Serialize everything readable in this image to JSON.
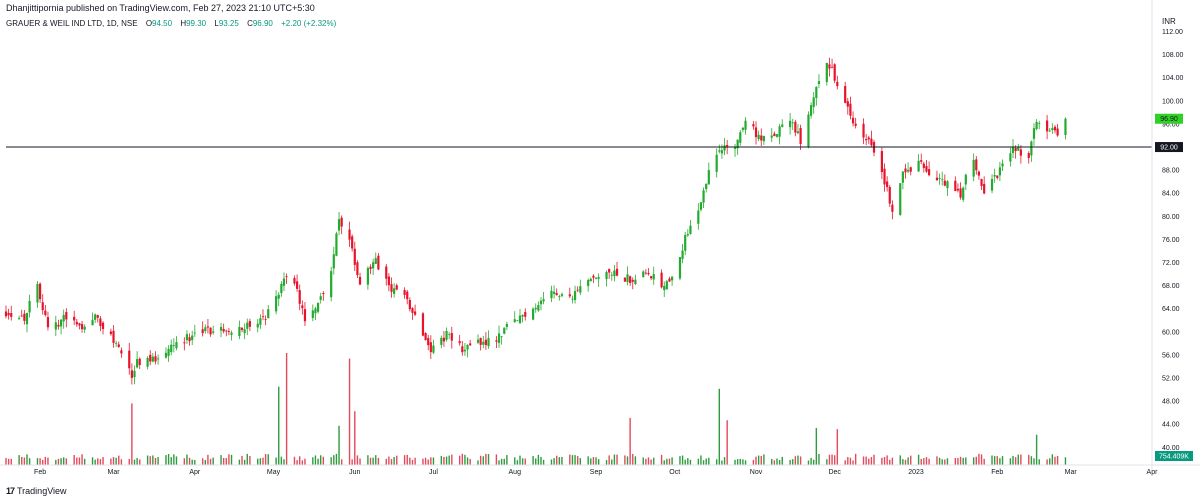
{
  "publisher_line": "Dhanjittipornia published on TradingView.com, Feb 27, 2023 21:10 UTC+5:30",
  "legend": {
    "symbol": "GRAUER & WEIL IND LTD, 1D, NSE",
    "open_label": "O",
    "open": "94.50",
    "high_label": "H",
    "high": "99.30",
    "low_label": "L",
    "low": "93.25",
    "close_label": "C",
    "close": "96.90",
    "change": "+2.20 (+2.32%)"
  },
  "currency": "INR",
  "footer": {
    "logo": "17",
    "brand": "TradingView"
  },
  "colors": {
    "up": "#089981",
    "down": "#f23645",
    "up_bright": "#22ab2e",
    "down_bright": "#e8132b",
    "vol_up": "#2e9c3c",
    "vol_down": "#e34a5c",
    "line": "#131722",
    "last_price_bg": "#2fd126"
  },
  "chart_data": {
    "type": "candlestick",
    "y_ticks": [
      "112.00",
      "108.00",
      "104.00",
      "100.00",
      "96.00",
      "92.00",
      "88.00",
      "84.00",
      "80.00",
      "76.00",
      "72.00",
      "68.00",
      "64.00",
      "60.00",
      "56.00",
      "52.00",
      "48.00",
      "44.00",
      "40.00"
    ],
    "y_tick_values": [
      112,
      108,
      104,
      100,
      96,
      92,
      88,
      84,
      80,
      76,
      72,
      68,
      64,
      60,
      56,
      52,
      48,
      44,
      40
    ],
    "x_ticks": [
      "Feb",
      "Mar",
      "Apr",
      "May",
      "Jun",
      "Jul",
      "Aug",
      "Sep",
      "Oct",
      "Nov",
      "Dec",
      "2023",
      "Feb",
      "Mar",
      "Apr"
    ],
    "x_tick_dates": [
      "2022-02-01",
      "2022-03-01",
      "2022-04-01",
      "2022-05-01",
      "2022-06-01",
      "2022-07-01",
      "2022-08-01",
      "2022-09-01",
      "2022-10-01",
      "2022-11-01",
      "2022-12-01",
      "2023-01-01",
      "2023-02-01",
      "2023-03-01",
      "2023-04-01"
    ],
    "ylim": [
      38.5,
      114
    ],
    "horizontal_line": {
      "value": 92.0,
      "label": "92.00"
    },
    "last_price": {
      "value": 96.9,
      "label": "96.90"
    },
    "last_volume_label": "754.409K",
    "anchors": [
      [
        "2022-01-19",
        63.5
      ],
      [
        "2022-01-26",
        62.5
      ],
      [
        "2022-01-31",
        68.5
      ],
      [
        "2022-02-04",
        60
      ],
      [
        "2022-02-10",
        62.5
      ],
      [
        "2022-02-16",
        61
      ],
      [
        "2022-02-22",
        62.5
      ],
      [
        "2022-03-03",
        57.5
      ],
      [
        "2022-03-08",
        52
      ],
      [
        "2022-03-10",
        55
      ],
      [
        "2022-03-16",
        55
      ],
      [
        "2022-03-22",
        57.5
      ],
      [
        "2022-03-29",
        59
      ],
      [
        "2022-04-05",
        60
      ],
      [
        "2022-04-13",
        60.5
      ],
      [
        "2022-04-21",
        61
      ],
      [
        "2022-04-28",
        62.5
      ],
      [
        "2022-05-03",
        67
      ],
      [
        "2022-05-06",
        70
      ],
      [
        "2022-05-10",
        67
      ],
      [
        "2022-05-13",
        62
      ],
      [
        "2022-05-19",
        66
      ],
      [
        "2022-05-23",
        71
      ],
      [
        "2022-05-26",
        80
      ],
      [
        "2022-05-31",
        74
      ],
      [
        "2022-06-03",
        68.5
      ],
      [
        "2022-06-09",
        72
      ],
      [
        "2022-06-14",
        68
      ],
      [
        "2022-06-20",
        66
      ],
      [
        "2022-06-24",
        63
      ],
      [
        "2022-06-30",
        57
      ],
      [
        "2022-07-06",
        59.5
      ],
      [
        "2022-07-12",
        57
      ],
      [
        "2022-07-18",
        58
      ],
      [
        "2022-07-25",
        59
      ],
      [
        "2022-08-01",
        62
      ],
      [
        "2022-08-08",
        64
      ],
      [
        "2022-08-12",
        66
      ],
      [
        "2022-08-18",
        67
      ],
      [
        "2022-08-23",
        66
      ],
      [
        "2022-08-31",
        69
      ],
      [
        "2022-09-08",
        70
      ],
      [
        "2022-09-14",
        69
      ],
      [
        "2022-09-20",
        71
      ],
      [
        "2022-09-26",
        68
      ],
      [
        "2022-09-30",
        70
      ],
      [
        "2022-10-05",
        76
      ],
      [
        "2022-10-10",
        81
      ],
      [
        "2022-10-14",
        88
      ],
      [
        "2022-10-19",
        92
      ],
      [
        "2022-10-24",
        92
      ],
      [
        "2022-10-28",
        97
      ],
      [
        "2022-11-03",
        93
      ],
      [
        "2022-11-08",
        94
      ],
      [
        "2022-11-14",
        97
      ],
      [
        "2022-11-18",
        93
      ],
      [
        "2022-11-24",
        103
      ],
      [
        "2022-11-28",
        107
      ],
      [
        "2022-12-02",
        103
      ],
      [
        "2022-12-08",
        96
      ],
      [
        "2022-12-14",
        93
      ],
      [
        "2022-12-19",
        88
      ],
      [
        "2022-12-23",
        81
      ],
      [
        "2022-12-27",
        88
      ],
      [
        "2023-01-03",
        89
      ],
      [
        "2023-01-09",
        86
      ],
      [
        "2023-01-13",
        86
      ],
      [
        "2023-01-18",
        84
      ],
      [
        "2023-01-23",
        90
      ],
      [
        "2023-01-27",
        84
      ],
      [
        "2023-02-02",
        88
      ],
      [
        "2023-02-08",
        92
      ],
      [
        "2023-02-13",
        90
      ],
      [
        "2023-02-16",
        97
      ],
      [
        "2023-02-21",
        95
      ],
      [
        "2023-02-24",
        94.7
      ],
      [
        "2023-02-27",
        96.9
      ]
    ],
    "volume_spikes": [
      [
        "2022-03-08",
        0.55
      ],
      [
        "2022-05-03",
        0.7
      ],
      [
        "2022-05-06",
        1.0
      ],
      [
        "2022-05-26",
        0.35
      ],
      [
        "2022-05-30",
        0.95
      ],
      [
        "2022-06-01",
        0.48
      ],
      [
        "2022-09-14",
        0.42
      ],
      [
        "2022-10-18",
        0.68
      ],
      [
        "2022-10-21",
        0.4
      ],
      [
        "2022-11-24",
        0.33
      ],
      [
        "2022-12-02",
        0.32
      ],
      [
        "2023-02-16",
        0.27
      ]
    ]
  }
}
